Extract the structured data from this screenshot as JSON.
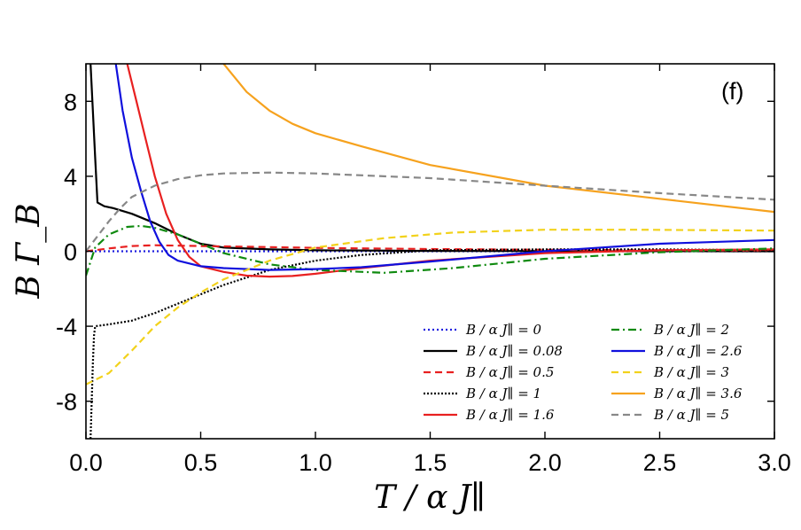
{
  "chart_data": {
    "type": "line",
    "title": "",
    "panel_label": "(f)",
    "xlabel": "T / α J∥",
    "ylabel": "B Γ_B",
    "xlim": [
      0.0,
      3.0
    ],
    "ylim": [
      -10,
      10
    ],
    "xticks": [
      0.0,
      0.5,
      1.0,
      1.5,
      2.0,
      2.5,
      3.0
    ],
    "xtick_labels": [
      "0.0",
      "0.5",
      "1.0",
      "1.5",
      "2.0",
      "2.5",
      "3.0"
    ],
    "yticks": [
      -8,
      -4,
      0,
      4,
      8
    ],
    "ytick_labels": [
      "-8",
      "-4",
      "0",
      "4",
      "8"
    ],
    "grid": false,
    "legend_position": "bottom-right",
    "series": [
      {
        "name": "B / α J∥ = 0",
        "legend_label": "B / α J∥ = 0",
        "color": "#1f1fdf",
        "dash": "dotted",
        "x": [
          0.0,
          3.0
        ],
        "y": [
          0,
          0
        ]
      },
      {
        "name": "B / α J∥ = 0.08",
        "legend_label": "B / α J∥ = 0.08",
        "color": "#000000",
        "dash": "solid",
        "x": [
          0.02,
          0.04,
          0.05,
          0.08,
          0.12,
          0.2,
          0.3,
          0.4,
          0.5,
          0.6,
          0.8,
          1.0,
          1.5,
          2.0,
          3.0
        ],
        "y": [
          10,
          5,
          2.6,
          2.4,
          2.3,
          2.0,
          1.5,
          0.9,
          0.4,
          0.2,
          0.1,
          0.05,
          0.02,
          0.01,
          0.0
        ]
      },
      {
        "name": "B / α J∥ = 0.5",
        "legend_label": "B / α J∥ = 0.5",
        "color": "#e82020",
        "dash": "dashed",
        "x": [
          0.0,
          0.1,
          0.2,
          0.3,
          0.5,
          0.8,
          1.0,
          1.5,
          2.0,
          2.5,
          3.0
        ],
        "y": [
          0.0,
          0.15,
          0.28,
          0.32,
          0.28,
          0.22,
          0.18,
          0.12,
          0.08,
          0.05,
          0.04
        ]
      },
      {
        "name": "B / α J∥ = 1",
        "legend_label": "B / α J∥ = 1",
        "color": "#000000",
        "dash": "dotted-dense",
        "x": [
          0.02,
          0.025,
          0.03,
          0.035,
          0.04,
          0.1,
          0.2,
          0.3,
          0.4,
          0.5,
          0.6,
          0.8,
          1.0,
          1.2,
          1.5,
          2.0,
          2.5,
          3.0
        ],
        "y": [
          -10,
          -8,
          -6,
          -4.5,
          -4.0,
          -3.9,
          -3.7,
          -3.3,
          -2.8,
          -2.3,
          -1.8,
          -1.0,
          -0.5,
          -0.2,
          0.05,
          0.1,
          0.1,
          0.05
        ]
      },
      {
        "name": "B / α J∥ = 1.6",
        "legend_label": "B / α J∥ = 1.6",
        "color": "#e82020",
        "dash": "solid",
        "x": [
          0.18,
          0.22,
          0.26,
          0.3,
          0.35,
          0.4,
          0.45,
          0.5,
          0.6,
          0.7,
          0.8,
          0.9,
          1.0,
          1.2,
          1.5,
          2.0,
          2.5,
          3.0
        ],
        "y": [
          10,
          8.0,
          6.0,
          4.0,
          2.0,
          0.6,
          -0.3,
          -0.8,
          -1.1,
          -1.3,
          -1.35,
          -1.32,
          -1.2,
          -0.9,
          -0.5,
          -0.1,
          0.05,
          0.1
        ]
      },
      {
        "name": "B / α J∥ = 2",
        "legend_label": "B / α J∥ = 2",
        "color": "#0f8a0f",
        "dash": "dashdot",
        "x": [
          0.0,
          0.04,
          0.1,
          0.18,
          0.24,
          0.3,
          0.4,
          0.5,
          0.6,
          0.8,
          1.0,
          1.3,
          1.6,
          2.0,
          2.5,
          3.0
        ],
        "y": [
          -1.3,
          0.2,
          0.9,
          1.3,
          1.35,
          1.25,
          0.9,
          0.4,
          -0.1,
          -0.7,
          -1.0,
          -1.15,
          -0.9,
          -0.4,
          -0.05,
          0.15
        ]
      },
      {
        "name": "B / α J∥ = 2.6",
        "legend_label": "B / α J∥ = 2.6",
        "color": "#1010dd",
        "dash": "solid",
        "x": [
          0.13,
          0.16,
          0.2,
          0.24,
          0.28,
          0.32,
          0.36,
          0.4,
          0.5,
          0.6,
          0.8,
          1.0,
          1.2,
          1.5,
          2.0,
          2.5,
          3.0
        ],
        "y": [
          10,
          7.5,
          5.0,
          3.2,
          1.6,
          0.5,
          -0.2,
          -0.5,
          -0.8,
          -0.9,
          -1.0,
          -0.95,
          -0.85,
          -0.55,
          0.0,
          0.4,
          0.6
        ]
      },
      {
        "name": "B / α J∥ = 3",
        "legend_label": "B / α J∥ = 3",
        "color": "#f2d21c",
        "dash": "dashed",
        "x": [
          0.0,
          0.1,
          0.2,
          0.3,
          0.4,
          0.5,
          0.6,
          0.8,
          1.0,
          1.3,
          1.6,
          2.0,
          2.4,
          3.0
        ],
        "y": [
          -7.1,
          -6.5,
          -5.3,
          -4.0,
          -3.0,
          -2.2,
          -1.5,
          -0.5,
          0.2,
          0.7,
          1.0,
          1.15,
          1.15,
          1.1
        ]
      },
      {
        "name": "B / α J∥ = 3.6",
        "legend_label": "B / α J∥ = 3.6",
        "color": "#f6a21e",
        "dash": "solid",
        "x": [
          0.6,
          0.7,
          0.8,
          0.9,
          1.0,
          1.2,
          1.5,
          2.0,
          2.5,
          3.0
        ],
        "y": [
          10,
          8.5,
          7.5,
          6.8,
          6.3,
          5.6,
          4.6,
          3.5,
          2.8,
          2.1
        ]
      },
      {
        "name": "B / α J∥ = 5",
        "legend_label": "B / α J∥ = 5",
        "color": "#888888",
        "dash": "dashed",
        "x": [
          0.0,
          0.05,
          0.1,
          0.15,
          0.2,
          0.3,
          0.4,
          0.5,
          0.6,
          0.8,
          1.0,
          1.5,
          2.0,
          2.5,
          3.0
        ],
        "y": [
          0.0,
          0.8,
          1.6,
          2.3,
          2.9,
          3.5,
          3.85,
          4.05,
          4.15,
          4.2,
          4.15,
          3.9,
          3.5,
          3.1,
          2.75
        ]
      }
    ]
  }
}
